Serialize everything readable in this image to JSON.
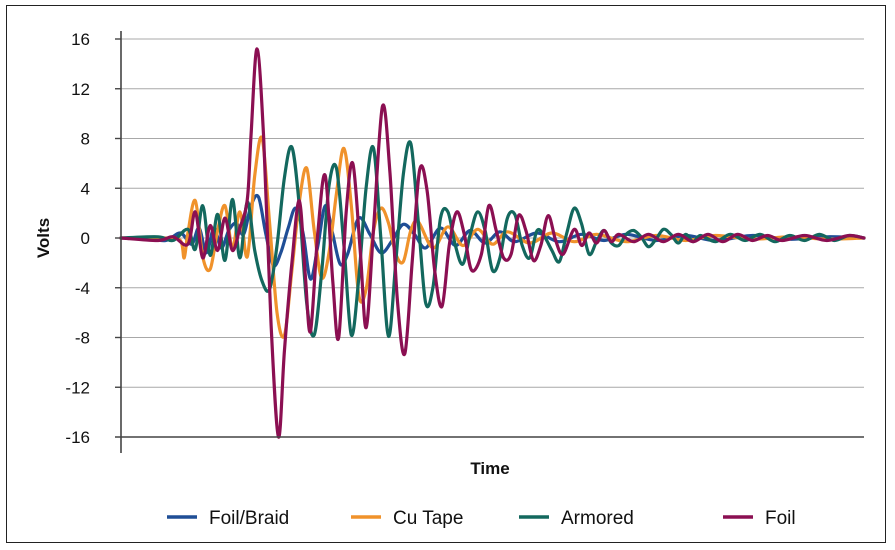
{
  "chart_data": {
    "type": "line",
    "title": "",
    "xlabel": "Time",
    "ylabel": "Volts",
    "xlim": [
      0,
      100
    ],
    "ylim": [
      -16,
      16
    ],
    "yticks": [
      16,
      12,
      8,
      4,
      0,
      -4,
      -8,
      -12,
      -16
    ],
    "ytick_labels": [
      "16",
      "12",
      "8",
      "4",
      "0",
      "-4",
      "-8",
      "-12",
      "-16"
    ],
    "grid": "horizontal",
    "legend_position": "bottom",
    "series": [
      {
        "name": "Foil/Braid",
        "color": "#1f4e96",
        "points": [
          [
            0,
            0
          ],
          [
            3,
            0
          ],
          [
            6,
            -0.2
          ],
          [
            8,
            0.4
          ],
          [
            9.5,
            -0.5
          ],
          [
            10.5,
            0.8
          ],
          [
            11.5,
            -1.2
          ],
          [
            12.5,
            0.8
          ],
          [
            13.5,
            -0.8
          ],
          [
            14.5,
            0.6
          ],
          [
            15.5,
            1.2
          ],
          [
            16.5,
            0.3
          ],
          [
            17.5,
            2.6
          ],
          [
            18.5,
            3.3
          ],
          [
            19.5,
            0.3
          ],
          [
            20.5,
            -2.2
          ],
          [
            21.5,
            -1.2
          ],
          [
            22.5,
            0.8
          ],
          [
            23.5,
            2.4
          ],
          [
            24.5,
            0.4
          ],
          [
            25.5,
            -3.3
          ],
          [
            26.5,
            -0.6
          ],
          [
            27.5,
            2.6
          ],
          [
            28.5,
            0.3
          ],
          [
            29.5,
            -2.1
          ],
          [
            30.5,
            -1.3
          ],
          [
            32,
            1.6
          ],
          [
            33.5,
            0.3
          ],
          [
            35,
            -1.2
          ],
          [
            36.5,
            -0.2
          ],
          [
            38,
            1.1
          ],
          [
            39.5,
            0.3
          ],
          [
            41,
            -0.8
          ],
          [
            43,
            0.8
          ],
          [
            45,
            -0.6
          ],
          [
            47,
            0.6
          ],
          [
            49,
            -0.4
          ],
          [
            51,
            0.5
          ],
          [
            53,
            -0.3
          ],
          [
            56,
            0.4
          ],
          [
            59,
            -0.3
          ],
          [
            62,
            0.3
          ],
          [
            65,
            -0.2
          ],
          [
            68,
            0.3
          ],
          [
            72,
            -0.2
          ],
          [
            76,
            0.2
          ],
          [
            80,
            -0.2
          ],
          [
            85,
            0.2
          ],
          [
            90,
            -0.1
          ],
          [
            95,
            0.1
          ],
          [
            100,
            0
          ]
        ]
      },
      {
        "name": "Cu Tape",
        "color": "#f0922b",
        "points": [
          [
            0,
            0
          ],
          [
            6,
            0
          ],
          [
            8,
            -0.2
          ],
          [
            8.5,
            -1.6
          ],
          [
            9,
            0.4
          ],
          [
            10,
            3.0
          ],
          [
            11,
            -1.5
          ],
          [
            12,
            -2.5
          ],
          [
            13,
            0.6
          ],
          [
            14,
            2.6
          ],
          [
            15,
            -0.8
          ],
          [
            16,
            2.1
          ],
          [
            17,
            -1.5
          ],
          [
            18,
            5.0
          ],
          [
            19,
            8.0
          ],
          [
            20,
            1.2
          ],
          [
            21,
            -6.0
          ],
          [
            22,
            -7.8
          ],
          [
            23,
            -2.6
          ],
          [
            24,
            2.9
          ],
          [
            25,
            5.6
          ],
          [
            26,
            0.6
          ],
          [
            27,
            -3.2
          ],
          [
            28,
            -1.2
          ],
          [
            29,
            3.6
          ],
          [
            30,
            7.2
          ],
          [
            31,
            2.6
          ],
          [
            32,
            -4.6
          ],
          [
            33,
            -4.1
          ],
          [
            34,
            0.6
          ],
          [
            35,
            2.4
          ],
          [
            36,
            1.2
          ],
          [
            37,
            -1.3
          ],
          [
            38,
            -1.9
          ],
          [
            39,
            0.6
          ],
          [
            40,
            1.3
          ],
          [
            42,
            -0.8
          ],
          [
            44,
            0.9
          ],
          [
            46,
            -0.6
          ],
          [
            48,
            0.7
          ],
          [
            50,
            -0.5
          ],
          [
            52,
            0.5
          ],
          [
            55,
            -0.4
          ],
          [
            58,
            0.4
          ],
          [
            61,
            -0.3
          ],
          [
            64,
            0.3
          ],
          [
            68,
            -0.3
          ],
          [
            72,
            0.2
          ],
          [
            76,
            -0.2
          ],
          [
            80,
            0.2
          ],
          [
            85,
            -0.1
          ],
          [
            90,
            0.1
          ],
          [
            95,
            -0.1
          ],
          [
            100,
            0
          ]
        ]
      },
      {
        "name": "Armored",
        "color": "#13685e",
        "points": [
          [
            0,
            0
          ],
          [
            5,
            0.1
          ],
          [
            7,
            -0.2
          ],
          [
            9,
            0.7
          ],
          [
            10,
            -0.9
          ],
          [
            11,
            2.6
          ],
          [
            12,
            -1.4
          ],
          [
            13,
            1.9
          ],
          [
            14,
            -1.8
          ],
          [
            15,
            3.1
          ],
          [
            16,
            -1.6
          ],
          [
            17,
            2.9
          ],
          [
            18,
            -1.0
          ],
          [
            19,
            -3.5
          ],
          [
            20,
            -4.1
          ],
          [
            21,
            -0.6
          ],
          [
            22,
            4.9
          ],
          [
            23,
            7.3
          ],
          [
            24,
            2.6
          ],
          [
            25,
            -5.3
          ],
          [
            26,
            -7.8
          ],
          [
            27,
            -2.8
          ],
          [
            28,
            4.2
          ],
          [
            29,
            5.6
          ],
          [
            30,
            -0.6
          ],
          [
            31,
            -7.8
          ],
          [
            32,
            -3.2
          ],
          [
            33,
            4.1
          ],
          [
            34,
            7.2
          ],
          [
            35,
            -0.3
          ],
          [
            36,
            -7.9
          ],
          [
            37,
            -1.8
          ],
          [
            38,
            5.1
          ],
          [
            39,
            7.6
          ],
          [
            40,
            1.4
          ],
          [
            41,
            -5.2
          ],
          [
            42,
            -3.9
          ],
          [
            43,
            1.6
          ],
          [
            44,
            2.1
          ],
          [
            45,
            -0.6
          ],
          [
            46,
            -2.1
          ],
          [
            47,
            0.3
          ],
          [
            48,
            2.1
          ],
          [
            49,
            0.6
          ],
          [
            50,
            -2.6
          ],
          [
            51,
            -1.6
          ],
          [
            52,
            1.6
          ],
          [
            53,
            1.9
          ],
          [
            54,
            -0.6
          ],
          [
            55,
            -1.6
          ],
          [
            56,
            0.6
          ],
          [
            57,
            0.1
          ],
          [
            58,
            -1.0
          ],
          [
            59,
            -1.9
          ],
          [
            60,
            0.4
          ],
          [
            61,
            2.4
          ],
          [
            62,
            1.1
          ],
          [
            63,
            -1.3
          ],
          [
            64,
            -0.3
          ],
          [
            65,
            0.6
          ],
          [
            66,
            -0.4
          ],
          [
            67,
            -0.6
          ],
          [
            68,
            0.3
          ],
          [
            69,
            0.6
          ],
          [
            70,
            0.1
          ],
          [
            71,
            -0.7
          ],
          [
            72,
            -0.1
          ],
          [
            73,
            0.7
          ],
          [
            74,
            0.3
          ],
          [
            75,
            -0.4
          ],
          [
            76,
            0.3
          ],
          [
            77,
            -0.3
          ],
          [
            78,
            0.2
          ],
          [
            80,
            -0.3
          ],
          [
            82,
            0.3
          ],
          [
            84,
            -0.2
          ],
          [
            86,
            0.3
          ],
          [
            88,
            -0.3
          ],
          [
            90,
            0.2
          ],
          [
            92,
            -0.2
          ],
          [
            94,
            0.3
          ],
          [
            96,
            -0.2
          ],
          [
            98,
            0.2
          ],
          [
            100,
            0
          ]
        ]
      },
      {
        "name": "Foil",
        "color": "#8b0f52",
        "points": [
          [
            0,
            0
          ],
          [
            5,
            -0.2
          ],
          [
            7,
            0.1
          ],
          [
            9,
            -0.5
          ],
          [
            10,
            2.1
          ],
          [
            11,
            -1.6
          ],
          [
            12,
            1.0
          ],
          [
            13,
            -1.0
          ],
          [
            14,
            1.6
          ],
          [
            15,
            -1.0
          ],
          [
            16,
            0.8
          ],
          [
            17,
            3.1
          ],
          [
            17.5,
            8.2
          ],
          [
            18.3,
            15.2
          ],
          [
            19.2,
            8.0
          ],
          [
            20.2,
            -7.0
          ],
          [
            21.2,
            -16.0
          ],
          [
            22,
            -9.0
          ],
          [
            23,
            -2.0
          ],
          [
            24,
            3.0
          ],
          [
            24.8,
            -3.0
          ],
          [
            25.5,
            -7.5
          ],
          [
            26.5,
            0.5
          ],
          [
            27.5,
            5.0
          ],
          [
            28.5,
            -3.5
          ],
          [
            29.3,
            -8.0
          ],
          [
            30.3,
            2.0
          ],
          [
            31.2,
            6.0
          ],
          [
            32.2,
            -1.0
          ],
          [
            33,
            -7.2
          ],
          [
            34,
            0.8
          ],
          [
            35.2,
            10.6
          ],
          [
            36.2,
            5.2
          ],
          [
            37.2,
            -5.0
          ],
          [
            38.2,
            -9.3
          ],
          [
            39.2,
            -1.8
          ],
          [
            40.2,
            5.5
          ],
          [
            41.2,
            3.8
          ],
          [
            42.2,
            -2.5
          ],
          [
            43.2,
            -5.5
          ],
          [
            44.2,
            -0.5
          ],
          [
            45.2,
            2.1
          ],
          [
            46.2,
            0.3
          ],
          [
            47.2,
            -2.6
          ],
          [
            48.5,
            -1.3
          ],
          [
            49.5,
            2.6
          ],
          [
            50.5,
            0.6
          ],
          [
            51.5,
            -1.6
          ],
          [
            52.5,
            -1.3
          ],
          [
            53.5,
            1.8
          ],
          [
            54.5,
            0.6
          ],
          [
            55.5,
            -1.8
          ],
          [
            56.5,
            -0.6
          ],
          [
            57.5,
            1.8
          ],
          [
            58.5,
            -0.2
          ],
          [
            59.5,
            -1.3
          ],
          [
            61,
            0.7
          ],
          [
            62,
            -0.6
          ],
          [
            63,
            0.4
          ],
          [
            64,
            -0.4
          ],
          [
            65,
            0.6
          ],
          [
            66,
            -0.3
          ],
          [
            67,
            0.3
          ],
          [
            69,
            -0.3
          ],
          [
            71,
            0.3
          ],
          [
            73,
            -0.3
          ],
          [
            75,
            0.3
          ],
          [
            77,
            -0.3
          ],
          [
            79,
            0.3
          ],
          [
            81,
            -0.3
          ],
          [
            83,
            0.3
          ],
          [
            85,
            -0.2
          ],
          [
            87,
            0.2
          ],
          [
            89,
            -0.2
          ],
          [
            92,
            0.2
          ],
          [
            95,
            -0.2
          ],
          [
            98,
            0.2
          ],
          [
            100,
            0
          ]
        ]
      }
    ]
  }
}
